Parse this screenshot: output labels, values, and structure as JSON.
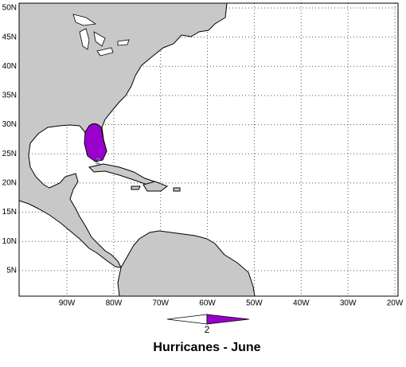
{
  "map": {
    "title": "Hurricanes - June",
    "lat_ticks": [
      {
        "value": 50,
        "label": "50N"
      },
      {
        "value": 45,
        "label": "45N"
      },
      {
        "value": 40,
        "label": "40N"
      },
      {
        "value": 35,
        "label": "35N"
      },
      {
        "value": 30,
        "label": "30N"
      },
      {
        "value": 25,
        "label": "25N"
      },
      {
        "value": 20,
        "label": "20N"
      },
      {
        "value": 15,
        "label": "15N"
      },
      {
        "value": 10,
        "label": "10N"
      },
      {
        "value": 5,
        "label": "5N"
      }
    ],
    "lon_ticks": [
      {
        "value": -90,
        "label": "90W"
      },
      {
        "value": -80,
        "label": "80W"
      },
      {
        "value": -70,
        "label": "70W"
      },
      {
        "value": -60,
        "label": "60W"
      },
      {
        "value": -50,
        "label": "50W"
      },
      {
        "value": -40,
        "label": "40W"
      },
      {
        "value": -30,
        "label": "30W"
      },
      {
        "value": -20,
        "label": "20W"
      }
    ],
    "swath_label": "2",
    "legend_label": "2",
    "color": "#9900cc"
  }
}
